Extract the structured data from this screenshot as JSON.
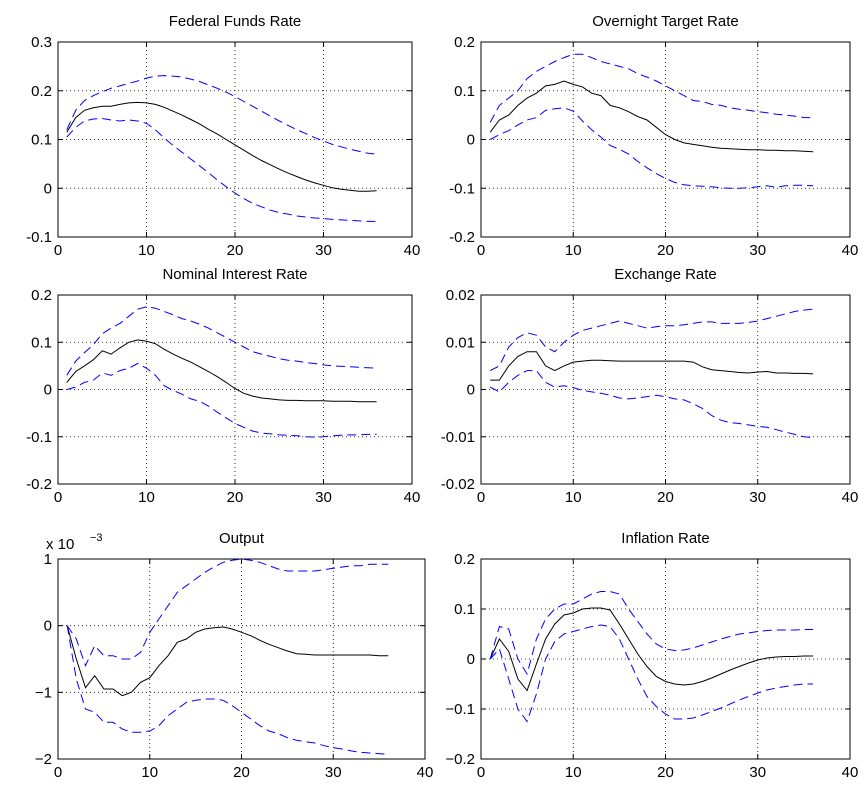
{
  "chart_data": [
    {
      "type": "line",
      "title": "Federal Funds Rate",
      "xlim": [
        0,
        40
      ],
      "ylim": [
        -0.1,
        0.3
      ],
      "xticks": [
        "0",
        "10",
        "20",
        "30",
        "40"
      ],
      "yticks": [
        "-0.1",
        "0",
        "0.1",
        "0.2",
        "0.3"
      ],
      "grid": true,
      "x": [
        1,
        2,
        3,
        4,
        5,
        6,
        7,
        8,
        9,
        10,
        11,
        12,
        13,
        14,
        15,
        16,
        17,
        18,
        19,
        20,
        21,
        22,
        23,
        24,
        25,
        26,
        27,
        28,
        29,
        30,
        31,
        32,
        33,
        34,
        35,
        36
      ],
      "series": [
        {
          "values": [
            0.115,
            0.145,
            0.16,
            0.165,
            0.168,
            0.168,
            0.172,
            0.175,
            0.176,
            0.175,
            0.172,
            0.166,
            0.158,
            0.15,
            0.141,
            0.132,
            0.121,
            0.111,
            0.1,
            0.089,
            0.078,
            0.067,
            0.057,
            0.048,
            0.039,
            0.031,
            0.024,
            0.017,
            0.011,
            0.006,
            0.001,
            -0.002,
            -0.004,
            -0.006,
            -0.006,
            -0.005
          ],
          "color": "#000000",
          "dash": "solid"
        },
        {
          "values": [
            0.12,
            0.16,
            0.18,
            0.19,
            0.198,
            0.205,
            0.21,
            0.215,
            0.22,
            0.226,
            0.23,
            0.231,
            0.23,
            0.228,
            0.224,
            0.219,
            0.212,
            0.205,
            0.197,
            0.188,
            0.178,
            0.168,
            0.158,
            0.148,
            0.138,
            0.129,
            0.12,
            0.112,
            0.104,
            0.097,
            0.09,
            0.085,
            0.08,
            0.076,
            0.072,
            0.07
          ],
          "color": "#0000ff",
          "dash": "dashed"
        },
        {
          "values": [
            0.105,
            0.125,
            0.138,
            0.142,
            0.143,
            0.14,
            0.138,
            0.14,
            0.138,
            0.133,
            0.12,
            0.103,
            0.088,
            0.074,
            0.06,
            0.046,
            0.032,
            0.017,
            0.003,
            -0.01,
            -0.021,
            -0.031,
            -0.038,
            -0.045,
            -0.05,
            -0.053,
            -0.057,
            -0.059,
            -0.061,
            -0.062,
            -0.064,
            -0.065,
            -0.066,
            -0.067,
            -0.068,
            -0.068
          ],
          "color": "#0000ff",
          "dash": "dashed"
        }
      ]
    },
    {
      "type": "line",
      "title": "Overnight Target Rate",
      "xlim": [
        0,
        40
      ],
      "ylim": [
        -0.2,
        0.2
      ],
      "xticks": [
        "0",
        "10",
        "20",
        "30",
        "40"
      ],
      "yticks": [
        "-0.2",
        "-0.1",
        "0",
        "0.1",
        "0.2"
      ],
      "grid": true,
      "x": [
        1,
        2,
        3,
        4,
        5,
        6,
        7,
        8,
        9,
        10,
        11,
        12,
        13,
        14,
        15,
        16,
        17,
        18,
        19,
        20,
        21,
        22,
        23,
        24,
        25,
        26,
        27,
        28,
        29,
        30,
        31,
        32,
        33,
        34,
        35,
        36
      ],
      "series": [
        {
          "values": [
            0.015,
            0.04,
            0.05,
            0.07,
            0.085,
            0.095,
            0.11,
            0.113,
            0.12,
            0.113,
            0.108,
            0.095,
            0.09,
            0.07,
            0.065,
            0.057,
            0.047,
            0.04,
            0.025,
            0.01,
            0.0,
            -0.007,
            -0.01,
            -0.013,
            -0.016,
            -0.018,
            -0.019,
            -0.02,
            -0.021,
            -0.021,
            -0.022,
            -0.022,
            -0.023,
            -0.023,
            -0.024,
            -0.025
          ],
          "color": "#000000",
          "dash": "solid"
        },
        {
          "values": [
            0.035,
            0.07,
            0.085,
            0.1,
            0.125,
            0.14,
            0.15,
            0.16,
            0.168,
            0.175,
            0.175,
            0.168,
            0.16,
            0.155,
            0.15,
            0.145,
            0.135,
            0.128,
            0.12,
            0.11,
            0.1,
            0.09,
            0.08,
            0.078,
            0.072,
            0.07,
            0.065,
            0.062,
            0.06,
            0.057,
            0.055,
            0.052,
            0.05,
            0.048,
            0.045,
            0.045
          ],
          "color": "#0000ff",
          "dash": "dashed"
        },
        {
          "values": [
            0.0,
            0.01,
            0.018,
            0.03,
            0.04,
            0.045,
            0.06,
            0.063,
            0.065,
            0.058,
            0.038,
            0.02,
            0.005,
            -0.012,
            -0.02,
            -0.03,
            -0.045,
            -0.058,
            -0.07,
            -0.08,
            -0.088,
            -0.093,
            -0.095,
            -0.096,
            -0.097,
            -0.099,
            -0.1,
            -0.1,
            -0.099,
            -0.097,
            -0.095,
            -0.098,
            -0.095,
            -0.094,
            -0.094,
            -0.095
          ],
          "color": "#0000ff",
          "dash": "dashed"
        }
      ]
    },
    {
      "type": "line",
      "title": "Nominal Interest Rate",
      "xlim": [
        0,
        40
      ],
      "ylim": [
        -0.2,
        0.2
      ],
      "xticks": [
        "0",
        "10",
        "20",
        "30",
        "40"
      ],
      "yticks": [
        "-0.2",
        "-0.1",
        "0",
        "0.1",
        "0.2"
      ],
      "grid": true,
      "x": [
        1,
        2,
        3,
        4,
        5,
        6,
        7,
        8,
        9,
        10,
        11,
        12,
        13,
        14,
        15,
        16,
        17,
        18,
        19,
        20,
        21,
        22,
        23,
        24,
        25,
        26,
        27,
        28,
        29,
        30,
        31,
        32,
        33,
        34,
        35,
        36
      ],
      "series": [
        {
          "values": [
            0.015,
            0.038,
            0.05,
            0.063,
            0.082,
            0.075,
            0.088,
            0.1,
            0.105,
            0.102,
            0.097,
            0.085,
            0.075,
            0.066,
            0.058,
            0.048,
            0.038,
            0.027,
            0.015,
            0.002,
            -0.008,
            -0.014,
            -0.018,
            -0.02,
            -0.022,
            -0.023,
            -0.023,
            -0.024,
            -0.024,
            -0.024,
            -0.025,
            -0.025,
            -0.025,
            -0.026,
            -0.026,
            -0.026
          ],
          "color": "#000000",
          "dash": "solid"
        },
        {
          "values": [
            0.03,
            0.06,
            0.078,
            0.095,
            0.118,
            0.13,
            0.14,
            0.155,
            0.17,
            0.175,
            0.172,
            0.165,
            0.158,
            0.15,
            0.145,
            0.138,
            0.13,
            0.12,
            0.11,
            0.1,
            0.09,
            0.08,
            0.075,
            0.07,
            0.065,
            0.062,
            0.06,
            0.057,
            0.055,
            0.052,
            0.05,
            0.049,
            0.048,
            0.047,
            0.046,
            0.045
          ],
          "color": "#0000ff",
          "dash": "dashed"
        },
        {
          "values": [
            0.0,
            0.005,
            0.015,
            0.02,
            0.035,
            0.03,
            0.04,
            0.045,
            0.055,
            0.045,
            0.03,
            0.008,
            -0.002,
            -0.01,
            -0.02,
            -0.025,
            -0.035,
            -0.048,
            -0.06,
            -0.072,
            -0.08,
            -0.088,
            -0.092,
            -0.094,
            -0.096,
            -0.097,
            -0.098,
            -0.1,
            -0.101,
            -0.1,
            -0.098,
            -0.097,
            -0.096,
            -0.096,
            -0.095,
            -0.095
          ],
          "color": "#0000ff",
          "dash": "dashed"
        }
      ]
    },
    {
      "type": "line",
      "title": "Exchange Rate",
      "xlim": [
        0,
        40
      ],
      "ylim": [
        -0.02,
        0.02
      ],
      "xticks": [
        "0",
        "10",
        "20",
        "30",
        "40"
      ],
      "yticks": [
        "-0.02",
        "-0.01",
        "0",
        "0.01",
        "0.02"
      ],
      "grid": true,
      "x": [
        1,
        2,
        3,
        4,
        5,
        6,
        7,
        8,
        9,
        10,
        11,
        12,
        13,
        14,
        15,
        16,
        17,
        18,
        19,
        20,
        21,
        22,
        23,
        24,
        25,
        26,
        27,
        28,
        29,
        30,
        31,
        32,
        33,
        34,
        35,
        36
      ],
      "series": [
        {
          "values": [
            0.002,
            0.002,
            0.005,
            0.007,
            0.008,
            0.008,
            0.005,
            0.004,
            0.005,
            0.0058,
            0.006,
            0.0062,
            0.0062,
            0.0061,
            0.006,
            0.006,
            0.006,
            0.006,
            0.006,
            0.006,
            0.006,
            0.006,
            0.0058,
            0.0048,
            0.0042,
            0.004,
            0.0038,
            0.0036,
            0.0035,
            0.0037,
            0.0038,
            0.0035,
            0.0035,
            0.0034,
            0.0034,
            0.0033
          ],
          "color": "#000000",
          "dash": "solid"
        },
        {
          "values": [
            0.004,
            0.005,
            0.009,
            0.011,
            0.012,
            0.0115,
            0.009,
            0.008,
            0.01,
            0.0115,
            0.0125,
            0.013,
            0.0135,
            0.014,
            0.0145,
            0.014,
            0.0135,
            0.013,
            0.0133,
            0.0135,
            0.0135,
            0.0137,
            0.014,
            0.0143,
            0.0143,
            0.014,
            0.014,
            0.014,
            0.0142,
            0.0145,
            0.015,
            0.0155,
            0.016,
            0.0165,
            0.0168,
            0.017
          ],
          "color": "#0000ff",
          "dash": "dashed"
        },
        {
          "values": [
            0.0005,
            -0.0005,
            0.0015,
            0.003,
            0.004,
            0.004,
            0.0015,
            0.0005,
            0.0008,
            0.0004,
            -0.0002,
            -0.0005,
            -0.0008,
            -0.0012,
            -0.0018,
            -0.002,
            -0.0018,
            -0.0015,
            -0.0012,
            -0.0015,
            -0.002,
            -0.0022,
            -0.003,
            -0.004,
            -0.0055,
            -0.0065,
            -0.007,
            -0.0072,
            -0.0075,
            -0.0078,
            -0.008,
            -0.0085,
            -0.009,
            -0.0095,
            -0.01,
            -0.0102
          ],
          "color": "#0000ff",
          "dash": "dashed"
        }
      ]
    },
    {
      "type": "line",
      "title": "Output",
      "scale_label": "x 10",
      "scale_exponent": "−3",
      "xlim": [
        0,
        40
      ],
      "ylim": [
        -2,
        1
      ],
      "xticks": [
        "0",
        "10",
        "20",
        "30",
        "40"
      ],
      "yticks": [
        "−2",
        "−1",
        "0",
        "1"
      ],
      "grid": true,
      "x": [
        1,
        2,
        3,
        4,
        5,
        6,
        7,
        8,
        9,
        10,
        11,
        12,
        13,
        14,
        15,
        16,
        17,
        18,
        19,
        20,
        21,
        22,
        23,
        24,
        25,
        26,
        27,
        28,
        29,
        30,
        31,
        32,
        33,
        34,
        35,
        36
      ],
      "series": [
        {
          "values": [
            0.0,
            -0.5,
            -0.93,
            -0.75,
            -0.95,
            -0.95,
            -1.05,
            -1.0,
            -0.85,
            -0.78,
            -0.6,
            -0.45,
            -0.25,
            -0.2,
            -0.1,
            -0.05,
            -0.03,
            -0.02,
            -0.05,
            -0.1,
            -0.15,
            -0.22,
            -0.28,
            -0.33,
            -0.38,
            -0.42,
            -0.43,
            -0.44,
            -0.44,
            -0.44,
            -0.44,
            -0.44,
            -0.44,
            -0.44,
            -0.45,
            -0.45
          ],
          "color": "#000000",
          "dash": "solid"
        },
        {
          "values": [
            0.0,
            -0.2,
            -0.6,
            -0.3,
            -0.45,
            -0.45,
            -0.5,
            -0.5,
            -0.4,
            -0.1,
            0.1,
            0.3,
            0.5,
            0.6,
            0.7,
            0.8,
            0.88,
            0.95,
            0.98,
            1.0,
            0.98,
            0.95,
            0.9,
            0.85,
            0.82,
            0.82,
            0.82,
            0.82,
            0.84,
            0.86,
            0.88,
            0.9,
            0.9,
            0.92,
            0.92,
            0.92
          ],
          "color": "#0000ff",
          "dash": "dashed"
        },
        {
          "values": [
            0.0,
            -0.8,
            -1.25,
            -1.3,
            -1.45,
            -1.45,
            -1.55,
            -1.6,
            -1.6,
            -1.58,
            -1.5,
            -1.35,
            -1.25,
            -1.15,
            -1.12,
            -1.1,
            -1.1,
            -1.12,
            -1.2,
            -1.3,
            -1.4,
            -1.5,
            -1.58,
            -1.62,
            -1.68,
            -1.72,
            -1.74,
            -1.76,
            -1.8,
            -1.83,
            -1.85,
            -1.88,
            -1.9,
            -1.91,
            -1.92,
            -1.93
          ],
          "color": "#0000ff",
          "dash": "dashed"
        }
      ]
    },
    {
      "type": "line",
      "title": "Inflation Rate",
      "xlim": [
        0,
        40
      ],
      "ylim": [
        -0.2,
        0.2
      ],
      "xticks": [
        "0",
        "10",
        "20",
        "30",
        "40"
      ],
      "yticks": [
        "−0.2",
        "−0.1",
        "0",
        "0.1",
        "0.2"
      ],
      "grid": true,
      "x": [
        1,
        2,
        3,
        4,
        5,
        6,
        7,
        8,
        9,
        10,
        11,
        12,
        13,
        14,
        15,
        16,
        17,
        18,
        19,
        20,
        21,
        22,
        23,
        24,
        25,
        26,
        27,
        28,
        29,
        30,
        31,
        32,
        33,
        34,
        35,
        36
      ],
      "series": [
        {
          "values": [
            0.0,
            0.04,
            0.015,
            -0.04,
            -0.063,
            -0.01,
            0.04,
            0.07,
            0.088,
            0.092,
            0.1,
            0.102,
            0.102,
            0.098,
            0.07,
            0.04,
            0.01,
            -0.015,
            -0.035,
            -0.045,
            -0.05,
            -0.052,
            -0.05,
            -0.045,
            -0.038,
            -0.03,
            -0.022,
            -0.015,
            -0.008,
            -0.002,
            0.002,
            0.004,
            0.005,
            0.005,
            0.006,
            0.006
          ],
          "color": "#000000",
          "dash": "solid"
        },
        {
          "values": [
            0.0,
            0.065,
            0.06,
            0.0,
            -0.03,
            0.04,
            0.08,
            0.1,
            0.11,
            0.11,
            0.12,
            0.13,
            0.135,
            0.135,
            0.13,
            0.1,
            0.075,
            0.05,
            0.03,
            0.02,
            0.017,
            0.018,
            0.022,
            0.028,
            0.034,
            0.04,
            0.045,
            0.05,
            0.052,
            0.055,
            0.057,
            0.058,
            0.058,
            0.058,
            0.059,
            0.059
          ],
          "color": "#0000ff",
          "dash": "dashed"
        },
        {
          "values": [
            0.0,
            0.02,
            -0.04,
            -0.1,
            -0.125,
            -0.07,
            0.0,
            0.035,
            0.05,
            0.055,
            0.06,
            0.065,
            0.068,
            0.065,
            0.04,
            0.0,
            -0.04,
            -0.075,
            -0.095,
            -0.11,
            -0.12,
            -0.12,
            -0.118,
            -0.112,
            -0.105,
            -0.098,
            -0.09,
            -0.082,
            -0.075,
            -0.068,
            -0.062,
            -0.058,
            -0.055,
            -0.052,
            -0.05,
            -0.05
          ],
          "color": "#0000ff",
          "dash": "dashed"
        }
      ]
    }
  ]
}
